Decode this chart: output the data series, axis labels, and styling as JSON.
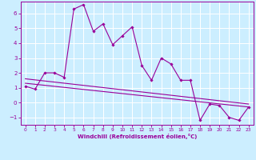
{
  "xlabel": "Windchill (Refroidissement éolien,°C)",
  "ylabel": "",
  "background_color": "#cceeff",
  "line_color": "#990099",
  "grid_color": "#ffffff",
  "xlim": [
    -0.5,
    23.5
  ],
  "ylim": [
    -1.5,
    6.8
  ],
  "xticks": [
    0,
    1,
    2,
    3,
    4,
    5,
    6,
    7,
    8,
    9,
    10,
    11,
    12,
    13,
    14,
    15,
    16,
    17,
    18,
    19,
    20,
    21,
    22,
    23
  ],
  "yticks": [
    -1,
    0,
    1,
    2,
    3,
    4,
    5,
    6
  ],
  "main_x": [
    0,
    1,
    2,
    3,
    4,
    5,
    6,
    7,
    8,
    9,
    10,
    11,
    12,
    13,
    14,
    15,
    16,
    17,
    18,
    19,
    20,
    21,
    22,
    23
  ],
  "main_y": [
    1.1,
    0.9,
    2.0,
    2.0,
    1.7,
    6.3,
    6.6,
    4.8,
    5.3,
    3.9,
    4.5,
    5.1,
    2.5,
    1.5,
    3.0,
    2.6,
    1.5,
    1.5,
    -1.2,
    -0.1,
    -0.2,
    -1.0,
    -1.2,
    -0.3
  ],
  "line1_x": [
    0,
    23
  ],
  "line1_y": [
    1.6,
    -0.1
  ],
  "line2_x": [
    0,
    23
  ],
  "line2_y": [
    1.3,
    -0.3
  ]
}
